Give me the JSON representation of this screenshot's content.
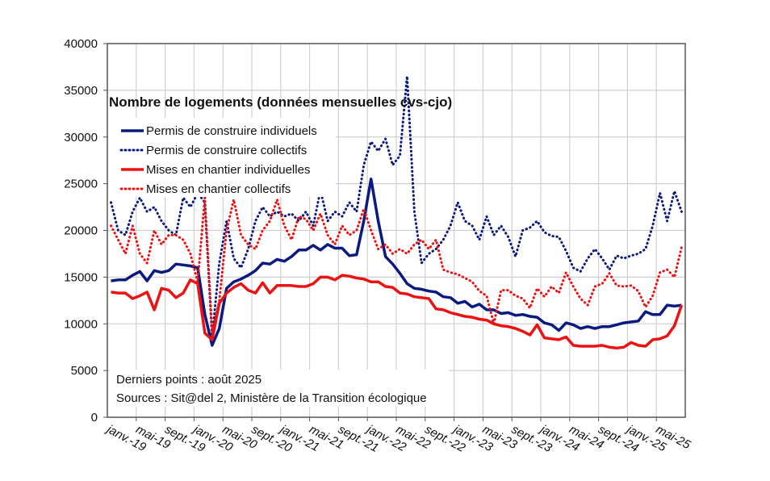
{
  "chart_data": {
    "type": "line",
    "title": "Nombre de logements (données mensuelles cvs-cjo)",
    "xlabel": "",
    "ylabel": "",
    "ylim": [
      0,
      40000
    ],
    "yticks": [
      "0",
      "5000",
      "10000",
      "15000",
      "20000",
      "25000",
      "30000",
      "35000",
      "40000"
    ],
    "grid": true,
    "legend_position": "top-left",
    "xtick_labels": [
      "janv.-19",
      "mai-19",
      "sept.-19",
      "janv.-20",
      "mai-20",
      "sept.-20",
      "janv.-21",
      "mai-21",
      "sept.-21",
      "janv.-22",
      "mai-22",
      "sept.-22",
      "janv.-23",
      "mai-23",
      "sept.-23",
      "janv.-24",
      "mai-24",
      "sept.-24",
      "janv.-25",
      "mai-25"
    ],
    "x_start": "janv. 2019",
    "x_end": "août 2025",
    "n_months": 80,
    "annotations": [
      "Derniers points : août 2025",
      "Sources : Sit@del 2, Ministère de la Transition écologique"
    ],
    "series": [
      {
        "name": "Permis de construire individuels",
        "color": "#0a1a80",
        "style": "solid",
        "values": [
          14600,
          14700,
          14700,
          15200,
          15600,
          14600,
          15700,
          15500,
          15700,
          16400,
          16300,
          16200,
          16000,
          11000,
          7700,
          9500,
          13800,
          14500,
          14800,
          15200,
          15700,
          16500,
          16400,
          16900,
          16700,
          17200,
          17900,
          17900,
          18400,
          17900,
          18500,
          18100,
          18100,
          17300,
          17400,
          21000,
          25500,
          21000,
          17200,
          16400,
          15400,
          14300,
          13800,
          13700,
          13500,
          13400,
          12900,
          12800,
          12200,
          12400,
          11800,
          12100,
          11500,
          11500,
          11100,
          11200,
          10900,
          11000,
          10800,
          10700,
          10100,
          9900,
          9300,
          10100,
          9900,
          9500,
          9700,
          9500,
          9700,
          9700,
          9900,
          10100,
          10200,
          10300,
          11300,
          11000,
          11000,
          12000,
          11900,
          12000
        ]
      },
      {
        "name": "Permis de construire collectifs",
        "color": "#0a1a80",
        "style": "dotted",
        "values": [
          23000,
          20000,
          19500,
          22000,
          23500,
          22000,
          22500,
          21000,
          20000,
          19500,
          23500,
          22500,
          24000,
          23000,
          8500,
          16500,
          21000,
          17000,
          16000,
          18000,
          21000,
          22500,
          21500,
          22000,
          21500,
          21800,
          21000,
          22000,
          20500,
          24300,
          21000,
          22000,
          21500,
          23000,
          22000,
          27000,
          29500,
          28500,
          29800,
          27000,
          28000,
          36500,
          22000,
          16500,
          17500,
          18000,
          19000,
          20500,
          23000,
          21000,
          20500,
          19000,
          21500,
          19500,
          20500,
          19300,
          17200,
          20000,
          20300,
          21000,
          19800,
          19400,
          19300,
          17800,
          16000,
          15600,
          17000,
          18000,
          17000,
          15800,
          17300,
          17000,
          17300,
          17500,
          18000,
          20500,
          24000,
          21000,
          24200,
          22000
        ]
      },
      {
        "name": "Mises en chantier individuelles",
        "color": "#ee1111",
        "style": "solid",
        "values": [
          13400,
          13300,
          13300,
          12700,
          13000,
          13400,
          11500,
          13800,
          13600,
          12800,
          13300,
          14700,
          14300,
          9000,
          8300,
          12200,
          13300,
          13900,
          14300,
          13600,
          13300,
          14400,
          13300,
          14100,
          14100,
          14100,
          14000,
          14000,
          14300,
          15000,
          15000,
          14700,
          15200,
          15100,
          14900,
          14800,
          14500,
          14500,
          14000,
          13900,
          13300,
          13200,
          12900,
          12800,
          12700,
          11600,
          11500,
          11200,
          11000,
          10800,
          10700,
          10500,
          10400,
          10000,
          9800,
          9700,
          9500,
          9200,
          8800,
          9900,
          8500,
          8400,
          8300,
          8600,
          7700,
          7600,
          7600,
          7600,
          7700,
          7500,
          7400,
          7500,
          8000,
          7700,
          7600,
          8300,
          8400,
          8700,
          9800,
          12000
        ]
      },
      {
        "name": "Mises en chantier collectifs",
        "color": "#ee1111",
        "style": "dotted",
        "values": [
          20500,
          19000,
          17500,
          20500,
          17500,
          16500,
          20000,
          18500,
          19500,
          19500,
          19000,
          17500,
          14500,
          23500,
          9000,
          12500,
          20000,
          23300,
          19500,
          18500,
          18000,
          20000,
          21000,
          23300,
          20500,
          19000,
          21500,
          21200,
          20000,
          21800,
          19500,
          18500,
          20500,
          19500,
          20000,
          22300,
          20000,
          18000,
          18500,
          17500,
          18000,
          17500,
          18500,
          19000,
          18000,
          19000,
          15800,
          15500,
          15300,
          14900,
          14500,
          13500,
          13000,
          10000,
          13600,
          13600,
          13000,
          12700,
          11700,
          13800,
          12900,
          14000,
          13300,
          15500,
          14000,
          12700,
          12000,
          14000,
          14300,
          15400,
          14100,
          14000,
          14100,
          13500,
          11800,
          13000,
          15500,
          15800,
          15000,
          18200
        ]
      }
    ]
  }
}
